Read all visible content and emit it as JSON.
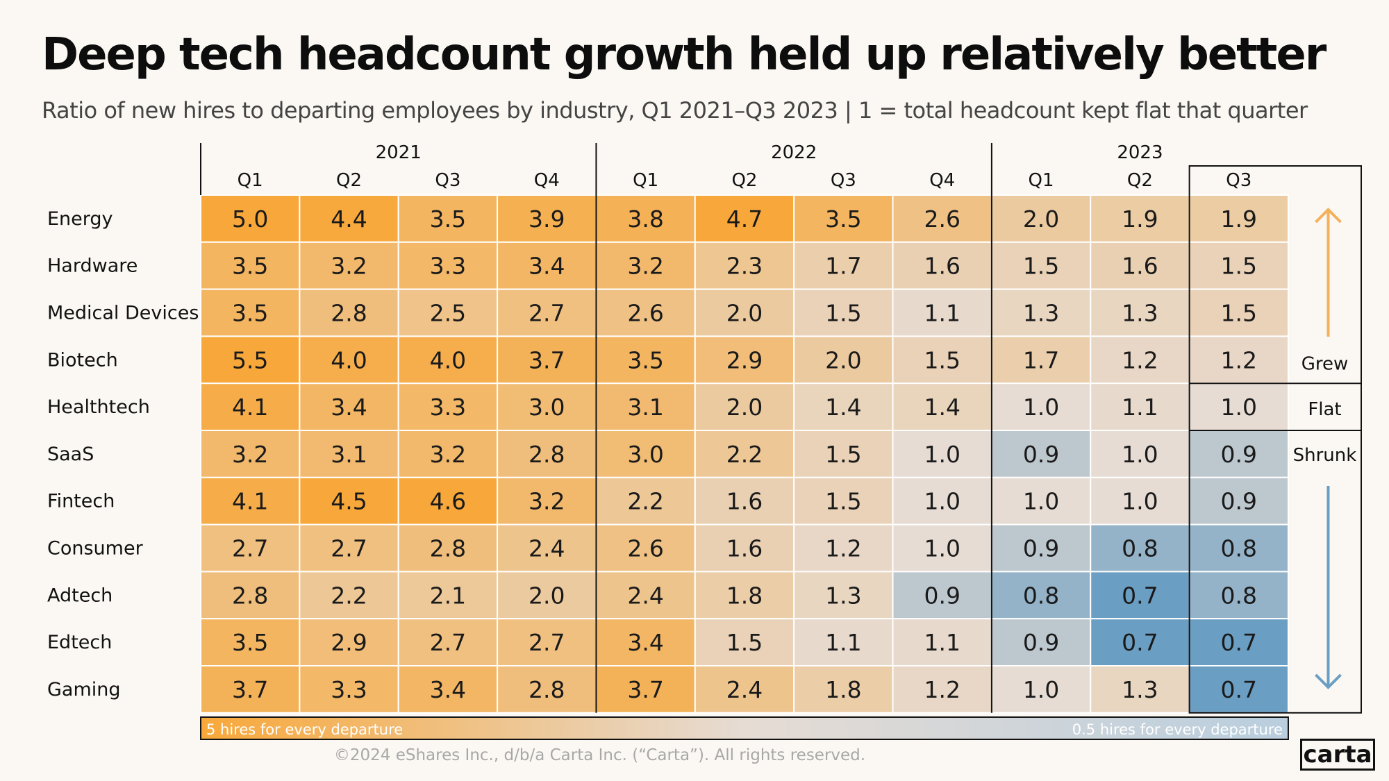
{
  "title": "Deep tech headcount growth held up relatively better",
  "subtitle": "Ratio of new hires to departing employees by industry, Q1 2021–Q3 2023 | 1 = total headcount kept flat that quarter",
  "footer": "©2024 eShares Inc., d/b/a Carta Inc. (“Carta”). All rights reserved.",
  "logo": "carta",
  "colors": {
    "high": "#f8a83a",
    "mid": "#e6dcd4",
    "low": "#6b9ec3",
    "arrow_up": "#f5b05a",
    "arrow_down": "#6b9ec3"
  },
  "chart_data": {
    "type": "heatmap",
    "years": [
      {
        "label": "2021",
        "quarters": 4
      },
      {
        "label": "2022",
        "quarters": 4
      },
      {
        "label": "2023",
        "quarters": 3
      }
    ],
    "columns": [
      "Q1",
      "Q2",
      "Q3",
      "Q4",
      "Q1",
      "Q2",
      "Q3",
      "Q4",
      "Q1",
      "Q2",
      "Q3"
    ],
    "rows": [
      {
        "name": "Energy",
        "values": [
          "5.0",
          "4.4",
          "3.5",
          "3.9",
          "3.8",
          "4.7",
          "3.5",
          "2.6",
          "2.0",
          "1.9",
          "1.9"
        ]
      },
      {
        "name": "Hardware",
        "values": [
          "3.5",
          "3.2",
          "3.3",
          "3.4",
          "3.2",
          "2.3",
          "1.7",
          "1.6",
          "1.5",
          "1.6",
          "1.5"
        ]
      },
      {
        "name": "Medical Devices",
        "values": [
          "3.5",
          "2.8",
          "2.5",
          "2.7",
          "2.6",
          "2.0",
          "1.5",
          "1.1",
          "1.3",
          "1.3",
          "1.5"
        ]
      },
      {
        "name": "Biotech",
        "values": [
          "5.5",
          "4.0",
          "4.0",
          "3.7",
          "3.5",
          "2.9",
          "2.0",
          "1.5",
          "1.7",
          "1.2",
          "1.2"
        ]
      },
      {
        "name": "Healthtech",
        "values": [
          "4.1",
          "3.4",
          "3.3",
          "3.0",
          "3.1",
          "2.0",
          "1.4",
          "1.4",
          "1.0",
          "1.1",
          "1.0"
        ]
      },
      {
        "name": "SaaS",
        "values": [
          "3.2",
          "3.1",
          "3.2",
          "2.8",
          "3.0",
          "2.2",
          "1.5",
          "1.0",
          "0.9",
          "1.0",
          "0.9"
        ]
      },
      {
        "name": "Fintech",
        "values": [
          "4.1",
          "4.5",
          "4.6",
          "3.2",
          "2.2",
          "1.6",
          "1.5",
          "1.0",
          "1.0",
          "1.0",
          "0.9"
        ]
      },
      {
        "name": "Consumer",
        "values": [
          "2.7",
          "2.7",
          "2.8",
          "2.4",
          "2.6",
          "1.6",
          "1.2",
          "1.0",
          "0.9",
          "0.8",
          "0.8"
        ]
      },
      {
        "name": "Adtech",
        "values": [
          "2.8",
          "2.2",
          "2.1",
          "2.0",
          "2.4",
          "1.8",
          "1.3",
          "0.9",
          "0.8",
          "0.7",
          "0.8"
        ]
      },
      {
        "name": "Edtech",
        "values": [
          "3.5",
          "2.9",
          "2.7",
          "2.7",
          "3.4",
          "1.5",
          "1.1",
          "1.1",
          "0.9",
          "0.7",
          "0.7"
        ]
      },
      {
        "name": "Gaming",
        "values": [
          "3.7",
          "3.3",
          "3.4",
          "2.8",
          "3.7",
          "2.4",
          "1.8",
          "1.2",
          "1.0",
          "1.3",
          "0.7"
        ]
      }
    ],
    "color_scale": {
      "max": 5,
      "min": 0.5,
      "pivot": 1
    },
    "legend": {
      "left_label": "5 hires for every departure",
      "right_label": "0.5 hires for every departure"
    },
    "side_labels": {
      "grew": "Grew",
      "flat": "Flat",
      "shrunk": "Shrunk"
    }
  }
}
